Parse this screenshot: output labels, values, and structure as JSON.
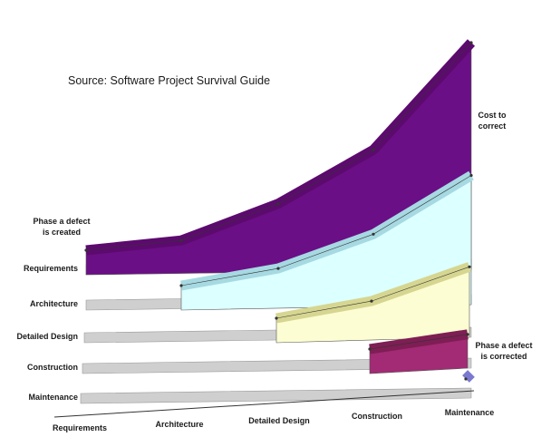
{
  "chart_data": {
    "type": "area",
    "title": "",
    "source": "Source: Software Project Survival Guide",
    "y_axis_label": [
      "Cost to",
      "correct"
    ],
    "created_axis_title": [
      "Phase a defect",
      "is created"
    ],
    "corrected_axis_title": [
      "Phase a defect",
      "is corrected"
    ],
    "x_categories": [
      "Requirements",
      "Architecture",
      "Detailed Design",
      "Construction",
      "Maintenance"
    ],
    "y_scale": "relative (unlabeled)",
    "series": [
      {
        "name": "Requirements",
        "color": "#5c0a6e",
        "values": [
          1,
          1.4,
          2.9,
          5.1,
          10
        ]
      },
      {
        "name": "Architecture",
        "color": "#a6d9e2",
        "values": [
          0,
          1,
          1.7,
          3.1,
          5.5
        ]
      },
      {
        "name": "Detailed Design",
        "color": "#d6d691",
        "values": [
          0,
          0,
          1,
          1.7,
          3.1
        ]
      },
      {
        "name": "Construction",
        "color": "#7e1e54",
        "values": [
          0,
          0,
          0,
          1,
          1.6
        ]
      },
      {
        "name": "Maintenance",
        "color": "#7a79cf",
        "values": [
          0,
          0,
          0,
          0,
          1
        ]
      }
    ],
    "colors": {
      "requirements_fill": "#6b0f86",
      "architecture_fill": "#dcffff",
      "design_fill": "#fcfdd2",
      "construction_fill": "#a32a74",
      "maintenance_fill": "#8f8ee0",
      "floor_strip": "#cfcfcf"
    }
  }
}
